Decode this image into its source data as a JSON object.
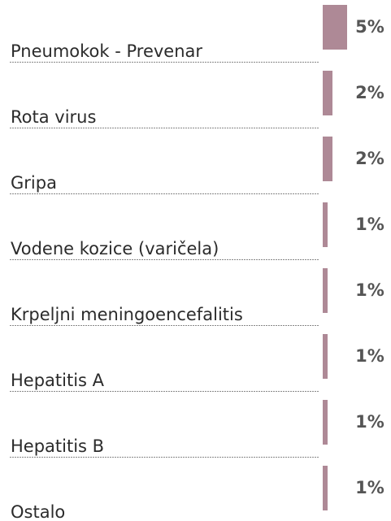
{
  "chart_data": {
    "type": "bar",
    "categories": [
      "Pneumokok - Prevenar",
      "Rota virus",
      "Gripa",
      "Vodene kozice (varičela)",
      "Krpeljni meningoencefalitis",
      "Hepatitis A",
      "Hepatitis B",
      "Ostalo"
    ],
    "values": [
      5,
      2,
      2,
      1,
      1,
      1,
      1,
      1
    ],
    "value_labels": [
      "5%",
      "2%",
      "2%",
      "1%",
      "1%",
      "1%",
      "1%",
      "1%"
    ],
    "color": "#ae8996"
  }
}
